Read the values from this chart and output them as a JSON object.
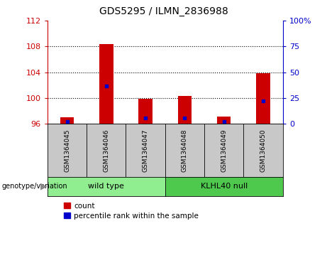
{
  "title": "GDS5295 / ILMN_2836988",
  "samples": [
    "GSM1364045",
    "GSM1364046",
    "GSM1364047",
    "GSM1364048",
    "GSM1364049",
    "GSM1364050"
  ],
  "count_values": [
    97.0,
    108.4,
    99.9,
    100.3,
    97.1,
    103.8
  ],
  "percentile_values": [
    2.0,
    37.0,
    5.5,
    5.5,
    2.5,
    22.0
  ],
  "baseline": 96,
  "ylim_left": [
    96,
    112
  ],
  "ylim_right": [
    0,
    100
  ],
  "yticks_left": [
    96,
    100,
    104,
    108,
    112
  ],
  "yticks_right": [
    0,
    25,
    50,
    75,
    100
  ],
  "yticklabels_right": [
    "0",
    "25",
    "50",
    "75",
    "100%"
  ],
  "left_tick_color": "#cc0000",
  "right_tick_color": "#0000cc",
  "bar_color": "#cc0000",
  "marker_color": "#0000cc",
  "bar_width": 0.35,
  "sample_bg_color": "#c8c8c8",
  "wt_color": "#90ee90",
  "kl_color": "#4ec94e",
  "background_color": "#ffffff",
  "legend_count_label": "count",
  "legend_pct_label": "percentile rank within the sample",
  "gridline_ticks": [
    100,
    104,
    108
  ]
}
